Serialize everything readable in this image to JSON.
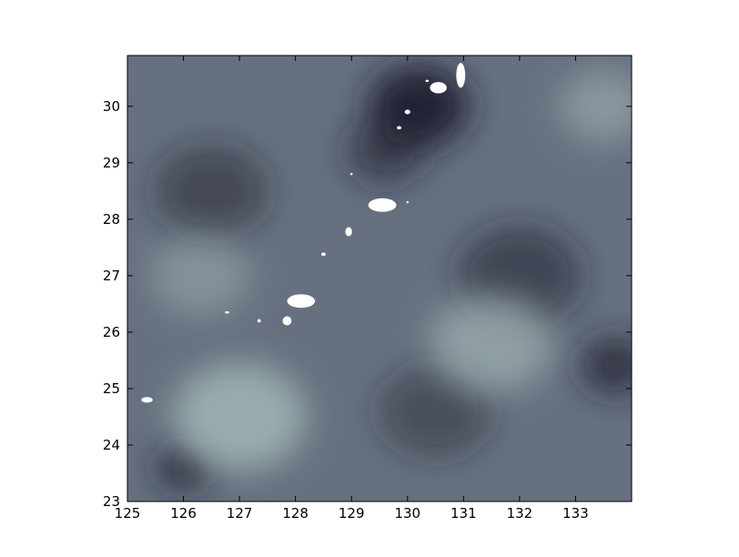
{
  "chart_data": {
    "type": "heatmap",
    "title": "",
    "xlabel": "",
    "ylabel": "",
    "xlim": [
      125,
      134
    ],
    "ylim": [
      23,
      30.9
    ],
    "x_ticks": [
      "125",
      "126",
      "127",
      "128",
      "129",
      "130",
      "131",
      "132",
      "133"
    ],
    "y_ticks": [
      "23",
      "24",
      "25",
      "26",
      "27",
      "28",
      "29",
      "30"
    ],
    "colormap": "bone",
    "colors": {
      "frame": "#000000",
      "missing": "#ffffff",
      "dark": "#1f1f2e",
      "light": "#9fb3b3"
    },
    "dark_regions": [
      {
        "lon": 130.2,
        "lat": 30.0,
        "intensity": 0.95,
        "spread": 0.9
      },
      {
        "lon": 129.6,
        "lat": 29.2,
        "intensity": 0.6,
        "spread": 0.7
      },
      {
        "lon": 126.0,
        "lat": 23.6,
        "intensity": 0.9,
        "spread": 0.45
      },
      {
        "lon": 133.7,
        "lat": 25.4,
        "intensity": 0.8,
        "spread": 0.6
      },
      {
        "lon": 132.0,
        "lat": 27.0,
        "intensity": 0.55,
        "spread": 1.1
      },
      {
        "lon": 126.5,
        "lat": 28.5,
        "intensity": 0.5,
        "spread": 1.0
      },
      {
        "lon": 130.5,
        "lat": 24.6,
        "intensity": 0.45,
        "spread": 1.0
      }
    ],
    "light_regions": [
      {
        "lon": 127.0,
        "lat": 24.5,
        "intensity": 0.9,
        "spread": 1.2
      },
      {
        "lon": 131.5,
        "lat": 25.8,
        "intensity": 0.7,
        "spread": 1.1
      },
      {
        "lon": 133.5,
        "lat": 30.0,
        "intensity": 0.6,
        "spread": 0.8
      },
      {
        "lon": 126.3,
        "lat": 27.0,
        "intensity": 0.5,
        "spread": 0.9
      }
    ],
    "missing_patches": [
      {
        "lon": 130.55,
        "lat": 30.33,
        "rlon": 0.15,
        "rlat": 0.1
      },
      {
        "lon": 130.95,
        "lat": 30.55,
        "rlon": 0.08,
        "rlat": 0.22
      },
      {
        "lon": 129.55,
        "lat": 28.25,
        "rlon": 0.25,
        "rlat": 0.12
      },
      {
        "lon": 128.95,
        "lat": 27.78,
        "rlon": 0.06,
        "rlat": 0.08
      },
      {
        "lon": 128.5,
        "lat": 27.38,
        "rlon": 0.04,
        "rlat": 0.03
      },
      {
        "lon": 128.1,
        "lat": 26.55,
        "rlon": 0.25,
        "rlat": 0.12
      },
      {
        "lon": 127.85,
        "lat": 26.2,
        "rlon": 0.08,
        "rlat": 0.08
      },
      {
        "lon": 127.35,
        "lat": 26.2,
        "rlon": 0.03,
        "rlat": 0.03
      },
      {
        "lon": 126.78,
        "lat": 26.35,
        "rlon": 0.04,
        "rlat": 0.02
      },
      {
        "lon": 125.35,
        "lat": 24.8,
        "rlon": 0.1,
        "rlat": 0.05
      },
      {
        "lon": 130.0,
        "lat": 29.9,
        "rlon": 0.05,
        "rlat": 0.04
      },
      {
        "lon": 129.85,
        "lat": 29.62,
        "rlon": 0.04,
        "rlat": 0.03
      },
      {
        "lon": 130.35,
        "lat": 30.45,
        "rlon": 0.03,
        "rlat": 0.02
      },
      {
        "lon": 129.0,
        "lat": 28.8,
        "rlon": 0.02,
        "rlat": 0.02
      },
      {
        "lon": 130.0,
        "lat": 28.3,
        "rlon": 0.02,
        "rlat": 0.02
      }
    ]
  }
}
